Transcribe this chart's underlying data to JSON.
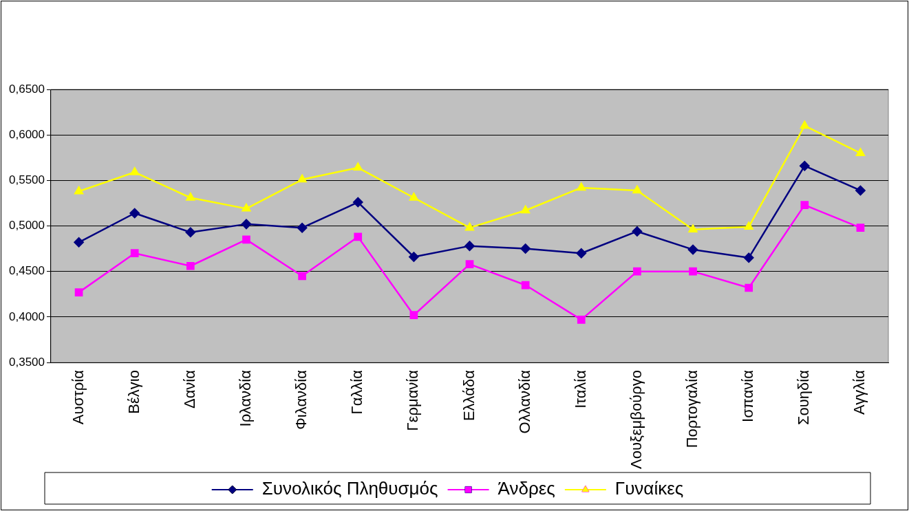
{
  "chart_data": {
    "type": "line",
    "categories": [
      "Αυστρία",
      "Βέλγιο",
      "Δανία",
      "Ιρλανδία",
      "Φιλανδία",
      "Γαλλία",
      "Γερμανία",
      "Ελλάδα",
      "Ολλανδία",
      "Ιταλία",
      "Λουξεμβούργο",
      "Πορτογαλία",
      "Ισπανία",
      "Σουηδία",
      "Αγγλία"
    ],
    "series": [
      {
        "name": "Συνολικός Πληθυσμός",
        "color": "#000080",
        "marker": "diamond",
        "values": [
          0.482,
          0.514,
          0.493,
          0.502,
          0.498,
          0.526,
          0.466,
          0.478,
          0.475,
          0.47,
          0.494,
          0.474,
          0.465,
          0.566,
          0.539
        ]
      },
      {
        "name": "Άνδρες",
        "color": "#ff00ff",
        "marker": "square",
        "values": [
          0.427,
          0.47,
          0.456,
          0.485,
          0.445,
          0.488,
          0.402,
          0.458,
          0.435,
          0.397,
          0.45,
          0.45,
          0.432,
          0.523,
          0.498
        ]
      },
      {
        "name": "Γυναίκες",
        "color": "#ffff00",
        "marker": "triangle",
        "values": [
          0.538,
          0.559,
          0.531,
          0.519,
          0.551,
          0.564,
          0.531,
          0.498,
          0.517,
          0.542,
          0.539,
          0.496,
          0.499,
          0.61,
          0.58
        ]
      }
    ],
    "ylim": [
      0.35,
      0.65
    ],
    "yticks": [
      {
        "value": 0.35,
        "label": "0,3500"
      },
      {
        "value": 0.4,
        "label": "0,4000"
      },
      {
        "value": 0.45,
        "label": "0,4500"
      },
      {
        "value": 0.5,
        "label": "0,5000"
      },
      {
        "value": 0.55,
        "label": "0,5500"
      },
      {
        "value": 0.6,
        "label": "0,6000"
      },
      {
        "value": 0.65,
        "label": "0,6500"
      }
    ],
    "grid": "y",
    "legend": "bottom",
    "line_style": "solid"
  }
}
